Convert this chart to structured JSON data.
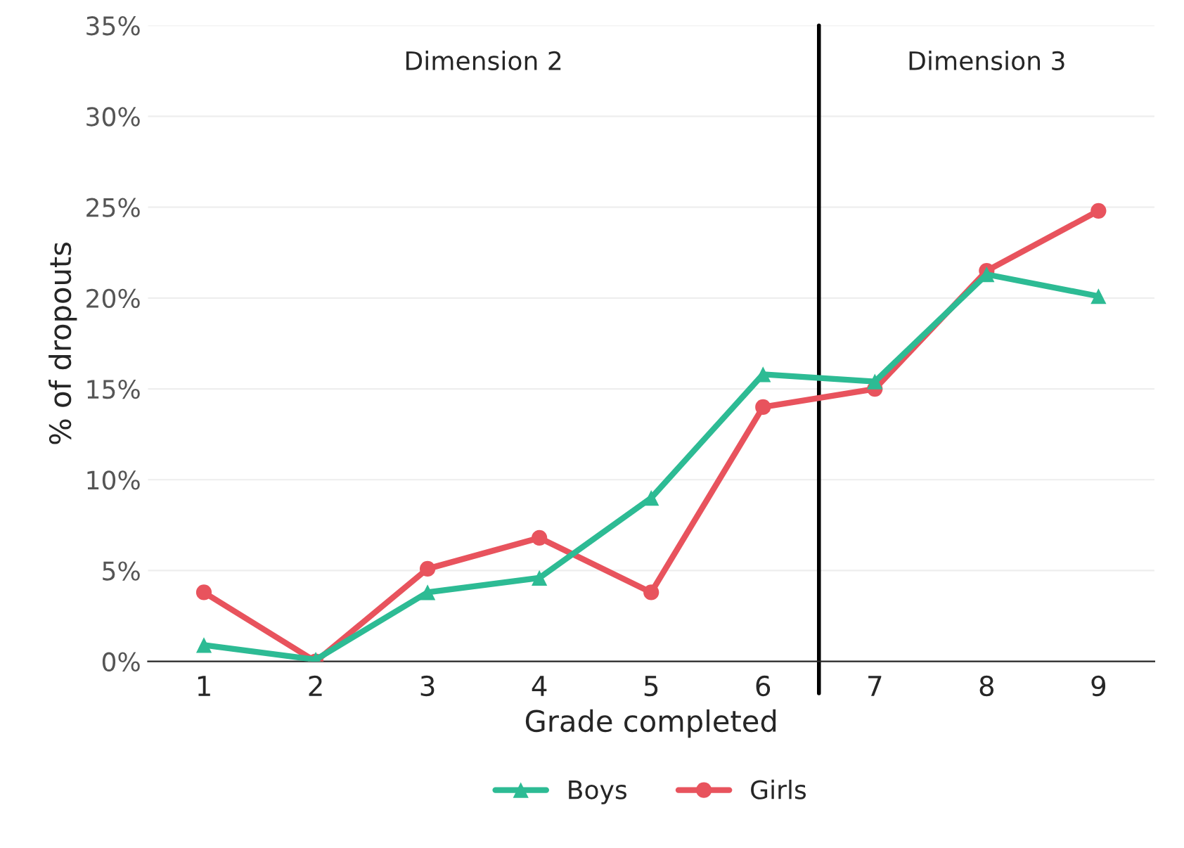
{
  "chart_data": {
    "type": "line",
    "xlabel": "Grade completed",
    "ylabel": "% of dropouts",
    "x": [
      1,
      2,
      3,
      4,
      5,
      6,
      7,
      8,
      9
    ],
    "xlim": [
      0.5,
      9.5
    ],
    "xticks": [
      1,
      2,
      3,
      4,
      5,
      6,
      7,
      8,
      9
    ],
    "ylim": [
      0,
      35
    ],
    "yticks": [
      {
        "value": 0,
        "label": "0%"
      },
      {
        "value": 5,
        "label": "5%"
      },
      {
        "value": 10,
        "label": "10%"
      },
      {
        "value": 15,
        "label": "15%"
      },
      {
        "value": 20,
        "label": "20%"
      },
      {
        "value": 25,
        "label": "25%"
      },
      {
        "value": 30,
        "label": "30%"
      },
      {
        "value": 35,
        "label": "35%"
      }
    ],
    "series": [
      {
        "name": "Boys",
        "color": "#2dbb94",
        "marker": "triangle",
        "values": [
          0.9,
          0.1,
          3.8,
          4.6,
          9.0,
          15.8,
          15.4,
          21.3,
          20.1
        ]
      },
      {
        "name": "Girls",
        "color": "#e8535d",
        "marker": "circle",
        "values": [
          3.8,
          0.0,
          5.1,
          6.8,
          3.8,
          14.0,
          15.0,
          21.5,
          24.8
        ]
      }
    ],
    "ref_lines": [
      {
        "axis": "x",
        "value": 6.5,
        "color": "#000000"
      }
    ],
    "annotations": [
      "Dimension 2",
      "Dimension 3"
    ],
    "grid": "y",
    "legend": "bottom"
  }
}
